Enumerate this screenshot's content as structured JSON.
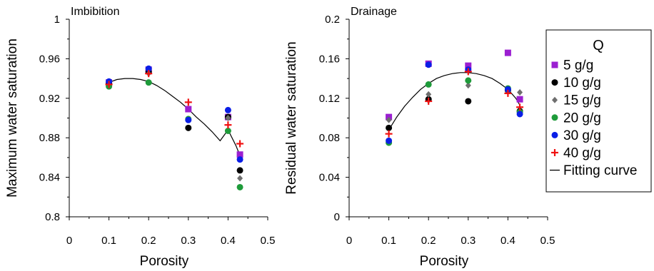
{
  "chart_data": [
    {
      "type": "scatter",
      "title": "Imbibition",
      "xlabel": "Porosity",
      "ylabel": "Maximum water saturation",
      "xlim": [
        0,
        0.5
      ],
      "ylim": [
        0.8,
        1.0
      ],
      "xticks": [
        "0",
        "0.1",
        "0.2",
        "0.3",
        "0.4",
        "0.5"
      ],
      "yticks": [
        "0.8",
        "0.84",
        "0.88",
        "0.92",
        "0.96",
        "1"
      ],
      "series": [
        {
          "name": "5 g/g",
          "points": [
            [
              0.1,
              0.936
            ],
            [
              0.2,
              0.949
            ],
            [
              0.3,
              0.909
            ],
            [
              0.4,
              0.901
            ],
            [
              0.43,
              0.863
            ]
          ]
        },
        {
          "name": "10 g/g",
          "points": [
            [
              0.1,
              0.935
            ],
            [
              0.2,
              0.947
            ],
            [
              0.3,
              0.89
            ],
            [
              0.4,
              0.901
            ],
            [
              0.43,
              0.847
            ]
          ]
        },
        {
          "name": "15 g/g",
          "points": [
            [
              0.1,
              0.933
            ],
            [
              0.2,
              0.945
            ],
            [
              0.3,
              0.899
            ],
            [
              0.4,
              0.9
            ],
            [
              0.43,
              0.839
            ]
          ]
        },
        {
          "name": "20 g/g",
          "points": [
            [
              0.1,
              0.932
            ],
            [
              0.2,
              0.936
            ],
            [
              0.3,
              0.899
            ],
            [
              0.4,
              0.887
            ],
            [
              0.43,
              0.83
            ]
          ]
        },
        {
          "name": "30 g/g",
          "points": [
            [
              0.1,
              0.937
            ],
            [
              0.2,
              0.95
            ],
            [
              0.3,
              0.898
            ],
            [
              0.4,
              0.908
            ],
            [
              0.43,
              0.858
            ]
          ]
        },
        {
          "name": "40 g/g",
          "points": [
            [
              0.1,
              0.934
            ],
            [
              0.2,
              0.945
            ],
            [
              0.3,
              0.916
            ],
            [
              0.4,
              0.893
            ],
            [
              0.43,
              0.874
            ]
          ]
        }
      ],
      "fit": {
        "x": [
          0.1,
          0.12,
          0.14,
          0.16,
          0.18,
          0.2,
          0.22,
          0.24,
          0.26,
          0.28,
          0.3,
          0.32,
          0.34,
          0.36,
          0.38,
          0.4,
          0.42,
          0.43
        ],
        "y": [
          0.936,
          0.939,
          0.94,
          0.94,
          0.939,
          0.937,
          0.933,
          0.928,
          0.922,
          0.916,
          0.909,
          0.901,
          0.894,
          0.886,
          0.877,
          0.888,
          0.872,
          0.862
        ]
      }
    },
    {
      "type": "scatter",
      "title": "Drainage",
      "xlabel": "Porosity",
      "ylabel": "Residual water saturation",
      "xlim": [
        0,
        0.5
      ],
      "ylim": [
        0,
        0.2
      ],
      "xticks": [
        "0",
        "0.1",
        "0.2",
        "0.3",
        "0.4",
        "0.5"
      ],
      "yticks": [
        "0",
        "0.04",
        "0.08",
        "0.12",
        "0.16",
        "0.2"
      ],
      "series": [
        {
          "name": "5 g/g",
          "points": [
            [
              0.1,
              0.101
            ],
            [
              0.2,
              0.155
            ],
            [
              0.3,
              0.153
            ],
            [
              0.4,
              0.166
            ],
            [
              0.43,
              0.119
            ]
          ]
        },
        {
          "name": "10 g/g",
          "points": [
            [
              0.1,
              0.09
            ],
            [
              0.2,
              0.119
            ],
            [
              0.3,
              0.117
            ],
            [
              0.4,
              0.128
            ],
            [
              0.43,
              0.107
            ]
          ]
        },
        {
          "name": "15 g/g",
          "points": [
            [
              0.1,
              0.098
            ],
            [
              0.2,
              0.124
            ],
            [
              0.3,
              0.133
            ],
            [
              0.4,
              0.127
            ],
            [
              0.43,
              0.126
            ]
          ]
        },
        {
          "name": "20 g/g",
          "points": [
            [
              0.1,
              0.075
            ],
            [
              0.2,
              0.134
            ],
            [
              0.3,
              0.138
            ],
            [
              0.4,
              0.13
            ],
            [
              0.43,
              0.106
            ]
          ]
        },
        {
          "name": "30 g/g",
          "points": [
            [
              0.1,
              0.077
            ],
            [
              0.2,
              0.154
            ],
            [
              0.3,
              0.149
            ],
            [
              0.4,
              0.129
            ],
            [
              0.43,
              0.104
            ]
          ]
        },
        {
          "name": "40 g/g",
          "points": [
            [
              0.1,
              0.084
            ],
            [
              0.2,
              0.117
            ],
            [
              0.3,
              0.147
            ],
            [
              0.4,
              0.125
            ],
            [
              0.43,
              0.111
            ]
          ]
        }
      ],
      "fit": {
        "x": [
          0.1,
          0.12,
          0.14,
          0.16,
          0.18,
          0.2,
          0.22,
          0.24,
          0.26,
          0.28,
          0.3,
          0.32,
          0.34,
          0.36,
          0.38,
          0.4,
          0.42,
          0.43
        ],
        "y": [
          0.088,
          0.101,
          0.112,
          0.121,
          0.129,
          0.135,
          0.14,
          0.143,
          0.145,
          0.146,
          0.146,
          0.145,
          0.143,
          0.14,
          0.135,
          0.129,
          0.12,
          0.113
        ]
      }
    }
  ],
  "legend": {
    "title": "Q",
    "items": [
      {
        "label": "5 g/g",
        "marker": "square",
        "color": "#9B1FD1"
      },
      {
        "label": "10 g/g",
        "marker": "circle",
        "color": "#000000"
      },
      {
        "label": "15 g/g",
        "marker": "diamond",
        "color": "#6E6E6E"
      },
      {
        "label": "20 g/g",
        "marker": "circle",
        "color": "#1E9B3A"
      },
      {
        "label": "30 g/g",
        "marker": "circle",
        "color": "#0A1EE6"
      },
      {
        "label": "40 g/g",
        "marker": "plus",
        "color": "#F01010"
      },
      {
        "label": "Fitting curve",
        "marker": "line",
        "color": "#000000"
      }
    ]
  }
}
